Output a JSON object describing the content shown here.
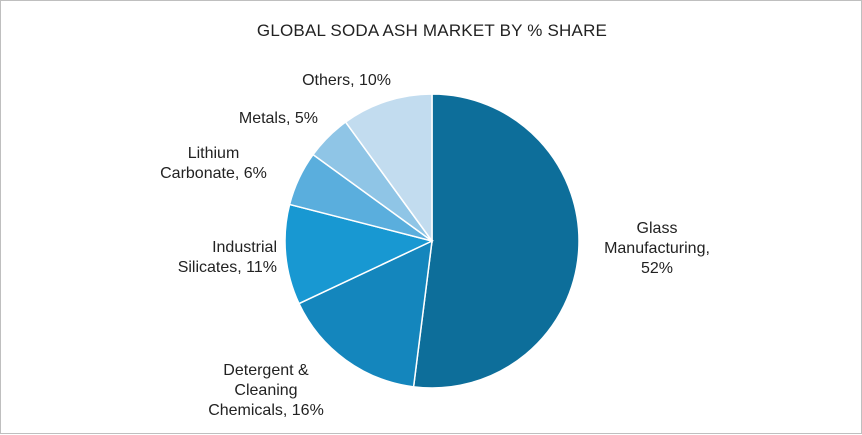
{
  "chart_data": {
    "type": "pie",
    "title": "GLOBAL SODA ASH MARKET BY % SHARE",
    "slices": [
      {
        "label": "Glass Manufacturing",
        "value": 52,
        "display": "Glass\nManufacturing,\n52%",
        "color": "#0d6e9a"
      },
      {
        "label": "Detergent & Cleaning Chemicals",
        "value": 16,
        "display": "Detergent &\nCleaning\nChemicals, 16%",
        "color": "#1486bd"
      },
      {
        "label": "Industrial Silicates",
        "value": 11,
        "display": "Industrial\nSilicates, 11%",
        "color": "#1898d2"
      },
      {
        "label": "Lithium Carbonate",
        "value": 6,
        "display": "Lithium\nCarbonate, 6%",
        "color": "#5aaedd"
      },
      {
        "label": "Metals",
        "value": 5,
        "display": "Metals, 5%",
        "color": "#8fc5e6"
      },
      {
        "label": "Others",
        "value": 10,
        "display": "Others, 10%",
        "color": "#c2dcef"
      }
    ],
    "legend": "none"
  }
}
